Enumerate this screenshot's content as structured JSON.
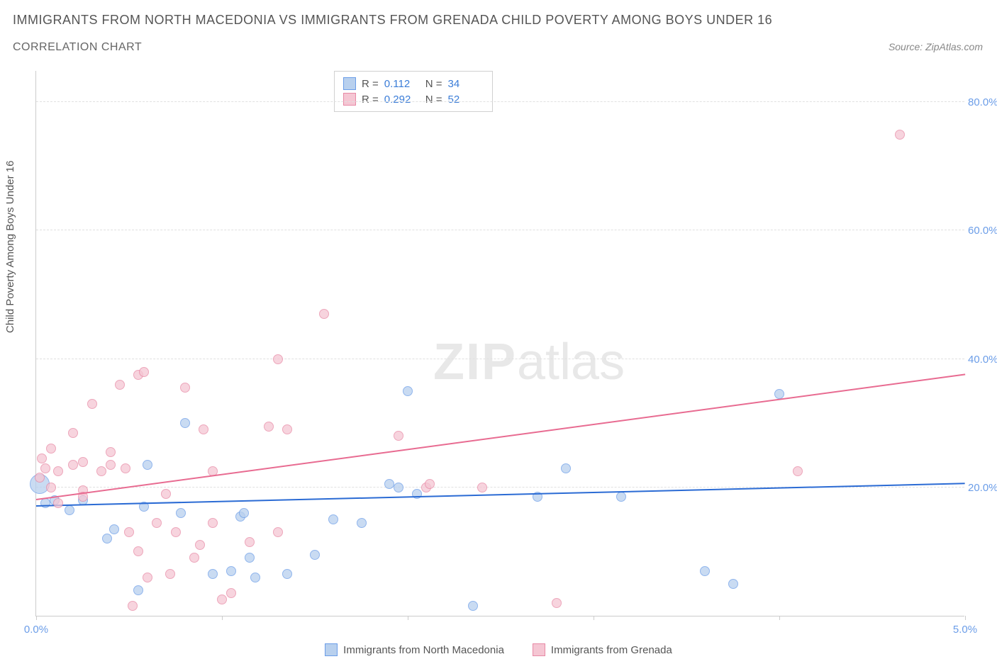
{
  "title_main": "IMMIGRANTS FROM NORTH MACEDONIA VS IMMIGRANTS FROM GRENADA CHILD POVERTY AMONG BOYS UNDER 16",
  "title_sub": "CORRELATION CHART",
  "source_text": "Source: ZipAtlas.com",
  "y_axis_label": "Child Poverty Among Boys Under 16",
  "watermark_zip": "ZIP",
  "watermark_atlas": "atlas",
  "chart": {
    "type": "scatter",
    "xlim": [
      0,
      5
    ],
    "ylim": [
      0,
      85
    ],
    "x_ticks": [
      0,
      1,
      2,
      3,
      4,
      5
    ],
    "x_tick_labels": [
      "0.0%",
      "",
      "",
      "",
      "",
      "5.0%"
    ],
    "y_gridlines": [
      20,
      40,
      60,
      80
    ],
    "y_tick_labels": [
      "20.0%",
      "40.0%",
      "60.0%",
      "80.0%"
    ],
    "grid_color": "#e0e0e0",
    "axis_color": "#cccccc",
    "background_color": "#ffffff"
  },
  "series": [
    {
      "name": "Immigrants from North Macedonia",
      "marker_fill": "#b8d0ee",
      "marker_stroke": "#6b9de8",
      "marker_opacity": 0.75,
      "marker_size": 14,
      "line_color": "#2b6bd4",
      "R": "0.112",
      "N": "34",
      "trend": {
        "x1": 0.0,
        "y1": 17.0,
        "x2": 5.0,
        "y2": 20.5
      },
      "points": [
        {
          "x": 0.02,
          "y": 20.5,
          "size": 28
        },
        {
          "x": 0.05,
          "y": 17.5
        },
        {
          "x": 0.1,
          "y": 18.0
        },
        {
          "x": 0.18,
          "y": 16.5
        },
        {
          "x": 0.25,
          "y": 18.0
        },
        {
          "x": 0.38,
          "y": 12.0
        },
        {
          "x": 0.42,
          "y": 13.5
        },
        {
          "x": 0.55,
          "y": 4.0
        },
        {
          "x": 0.58,
          "y": 17.0
        },
        {
          "x": 0.6,
          "y": 23.5
        },
        {
          "x": 0.8,
          "y": 30.0
        },
        {
          "x": 0.78,
          "y": 16.0
        },
        {
          "x": 0.95,
          "y": 6.5
        },
        {
          "x": 1.05,
          "y": 7.0
        },
        {
          "x": 1.1,
          "y": 15.5
        },
        {
          "x": 1.12,
          "y": 16.0
        },
        {
          "x": 1.15,
          "y": 9.0
        },
        {
          "x": 1.18,
          "y": 6.0
        },
        {
          "x": 1.35,
          "y": 6.5
        },
        {
          "x": 1.5,
          "y": 9.5
        },
        {
          "x": 1.6,
          "y": 15.0
        },
        {
          "x": 1.75,
          "y": 14.5
        },
        {
          "x": 1.9,
          "y": 20.5
        },
        {
          "x": 1.95,
          "y": 20.0
        },
        {
          "x": 2.0,
          "y": 35.0
        },
        {
          "x": 2.05,
          "y": 19.0
        },
        {
          "x": 2.35,
          "y": 1.5
        },
        {
          "x": 2.7,
          "y": 18.5
        },
        {
          "x": 2.85,
          "y": 23.0
        },
        {
          "x": 3.15,
          "y": 18.5
        },
        {
          "x": 3.6,
          "y": 7.0
        },
        {
          "x": 3.75,
          "y": 5.0
        },
        {
          "x": 4.0,
          "y": 34.5
        }
      ]
    },
    {
      "name": "Immigrants from Grenada",
      "marker_fill": "#f5c6d3",
      "marker_stroke": "#e889a5",
      "marker_opacity": 0.75,
      "marker_size": 14,
      "line_color": "#e86b91",
      "R": "0.292",
      "N": "52",
      "trend": {
        "x1": 0.0,
        "y1": 18.0,
        "x2": 5.0,
        "y2": 37.5
      },
      "points": [
        {
          "x": 0.02,
          "y": 21.5
        },
        {
          "x": 0.03,
          "y": 24.5
        },
        {
          "x": 0.05,
          "y": 23.0
        },
        {
          "x": 0.08,
          "y": 26.0
        },
        {
          "x": 0.08,
          "y": 20.0
        },
        {
          "x": 0.12,
          "y": 17.5
        },
        {
          "x": 0.12,
          "y": 22.5
        },
        {
          "x": 0.2,
          "y": 23.5
        },
        {
          "x": 0.2,
          "y": 28.5
        },
        {
          "x": 0.25,
          "y": 19.5
        },
        {
          "x": 0.25,
          "y": 24.0
        },
        {
          "x": 0.25,
          "y": 18.5
        },
        {
          "x": 0.3,
          "y": 33.0
        },
        {
          "x": 0.35,
          "y": 22.5
        },
        {
          "x": 0.4,
          "y": 25.5
        },
        {
          "x": 0.4,
          "y": 23.5
        },
        {
          "x": 0.45,
          "y": 36.0
        },
        {
          "x": 0.48,
          "y": 23.0
        },
        {
          "x": 0.5,
          "y": 13.0
        },
        {
          "x": 0.52,
          "y": 1.5
        },
        {
          "x": 0.55,
          "y": 10.0
        },
        {
          "x": 0.55,
          "y": 37.5
        },
        {
          "x": 0.58,
          "y": 38.0
        },
        {
          "x": 0.6,
          "y": 6.0
        },
        {
          "x": 0.65,
          "y": 14.5
        },
        {
          "x": 0.7,
          "y": 19.0
        },
        {
          "x": 0.72,
          "y": 6.5
        },
        {
          "x": 0.75,
          "y": 13.0
        },
        {
          "x": 0.8,
          "y": 35.5
        },
        {
          "x": 0.85,
          "y": 9.0
        },
        {
          "x": 0.88,
          "y": 11.0
        },
        {
          "x": 0.9,
          "y": 29.0
        },
        {
          "x": 0.95,
          "y": 14.5
        },
        {
          "x": 0.95,
          "y": 22.5
        },
        {
          "x": 1.0,
          "y": 2.5
        },
        {
          "x": 1.05,
          "y": 3.5
        },
        {
          "x": 1.15,
          "y": 11.5
        },
        {
          "x": 1.25,
          "y": 29.5
        },
        {
          "x": 1.3,
          "y": 40.0
        },
        {
          "x": 1.3,
          "y": 13.0
        },
        {
          "x": 1.35,
          "y": 29.0
        },
        {
          "x": 1.55,
          "y": 47.0
        },
        {
          "x": 1.95,
          "y": 28.0
        },
        {
          "x": 2.1,
          "y": 20.0
        },
        {
          "x": 2.12,
          "y": 20.5
        },
        {
          "x": 2.4,
          "y": 20.0
        },
        {
          "x": 2.8,
          "y": 2.0
        },
        {
          "x": 4.1,
          "y": 22.5
        },
        {
          "x": 4.65,
          "y": 75.0
        }
      ]
    }
  ],
  "stats_box": {
    "rows": [
      {
        "swatch_fill": "#b8d0ee",
        "swatch_stroke": "#6b9de8",
        "R_label": "R =",
        "R_val": "0.112",
        "N_label": "N =",
        "N_val": "34"
      },
      {
        "swatch_fill": "#f5c6d3",
        "swatch_stroke": "#e889a5",
        "R_label": "R =",
        "R_val": "0.292",
        "N_label": "N =",
        "N_val": "52"
      }
    ]
  },
  "bottom_legend": [
    {
      "swatch_fill": "#b8d0ee",
      "swatch_stroke": "#6b9de8",
      "label": "Immigrants from North Macedonia"
    },
    {
      "swatch_fill": "#f5c6d3",
      "swatch_stroke": "#e889a5",
      "label": "Immigrants from Grenada"
    }
  ]
}
